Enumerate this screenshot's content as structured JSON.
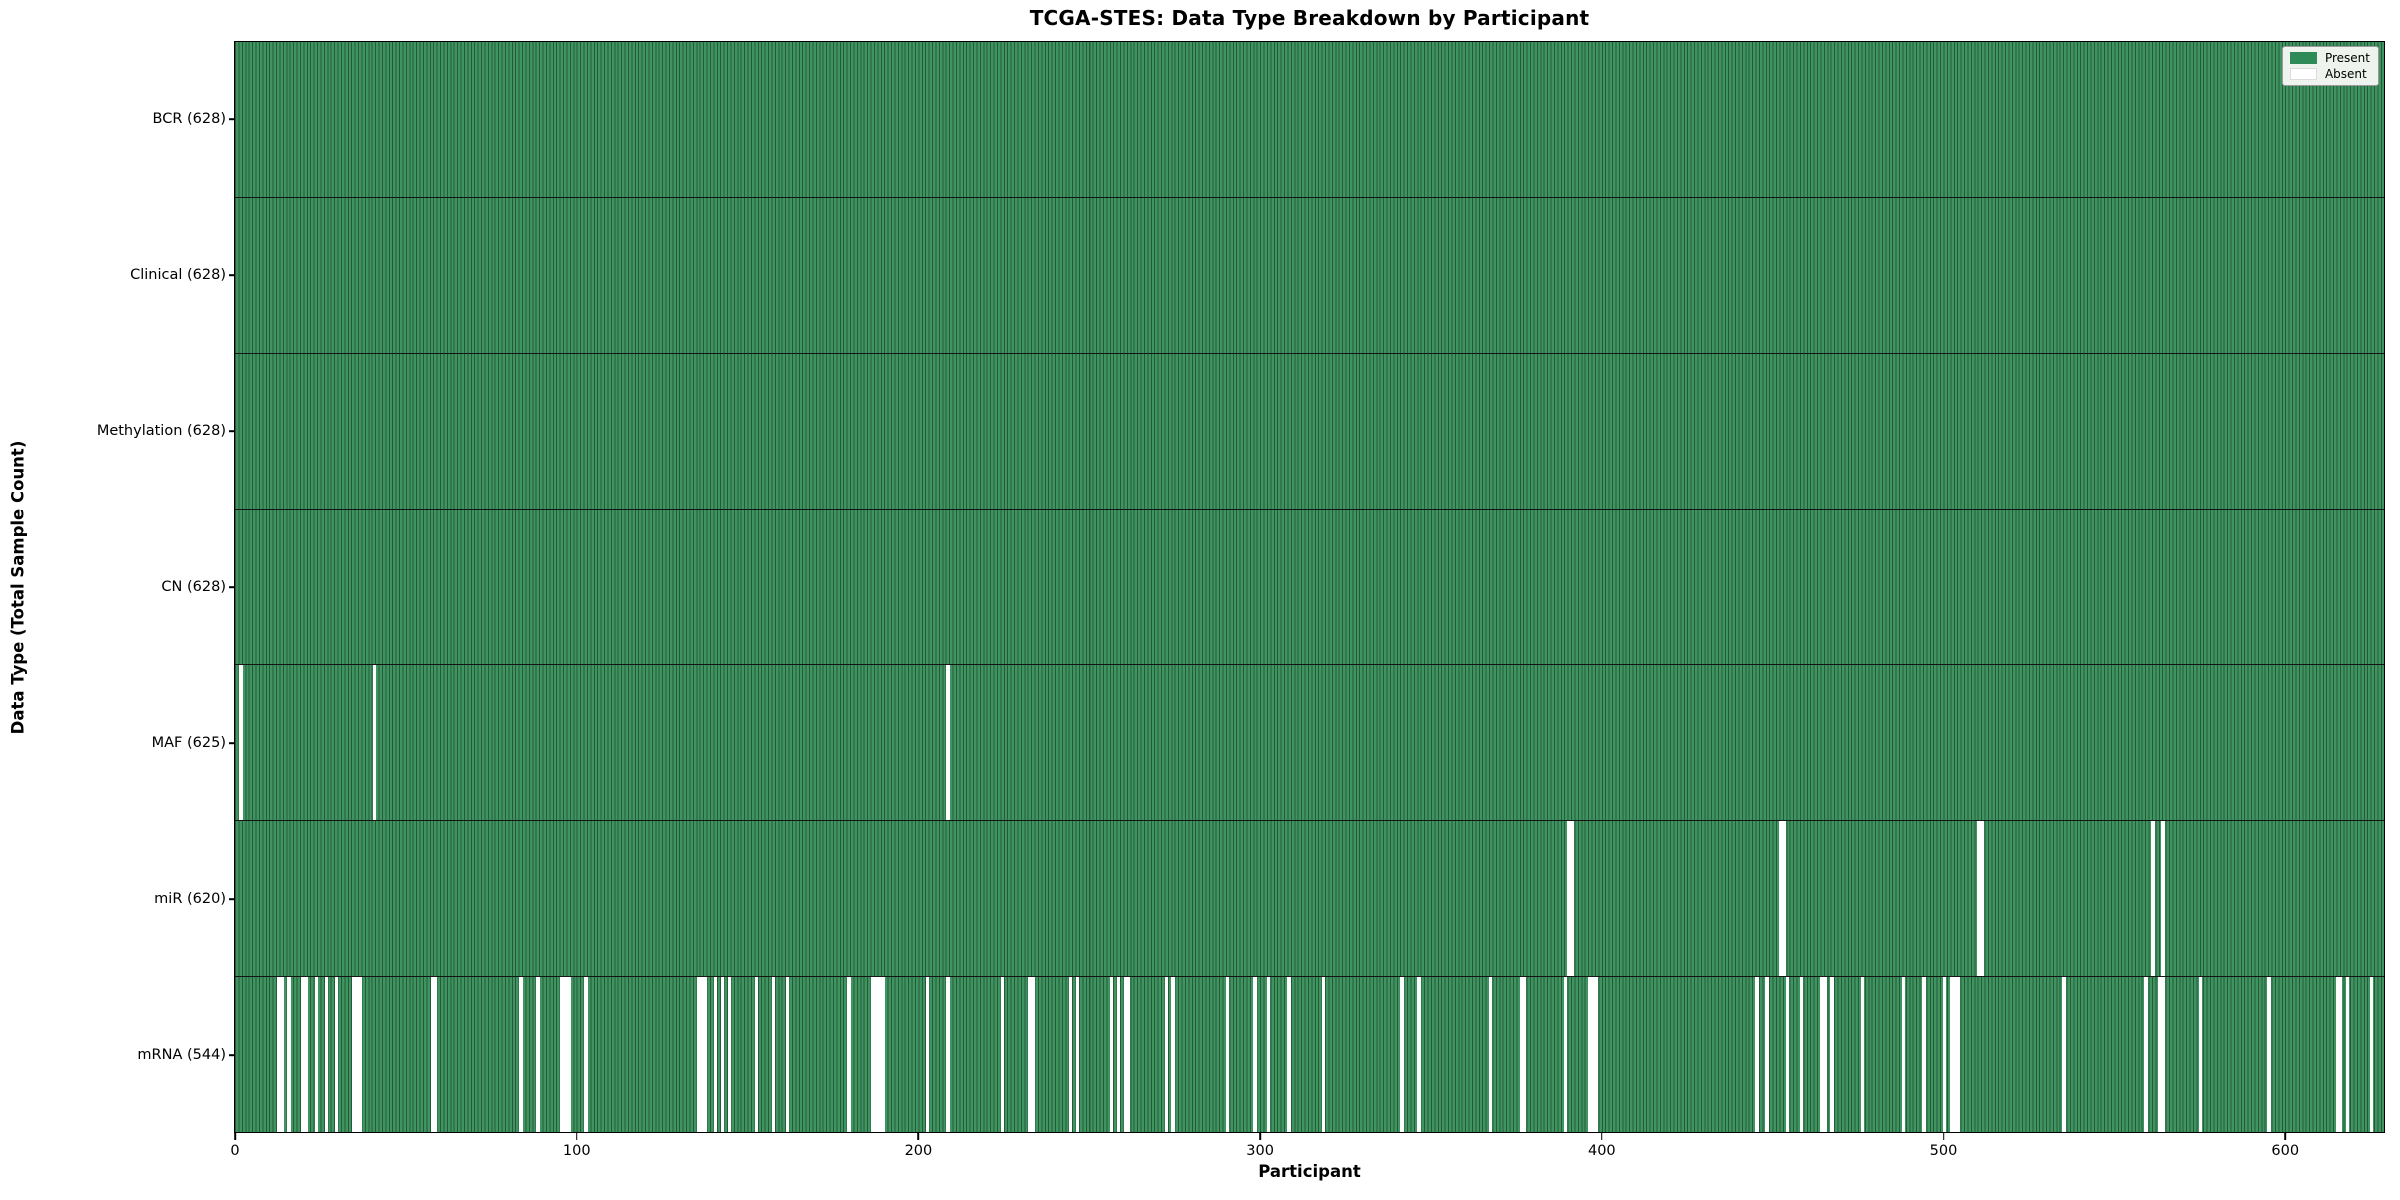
{
  "chart_data": {
    "type": "heatmap",
    "title": "TCGA-STES: Data Type Breakdown by Participant",
    "xlabel": "Participant",
    "ylabel": "Data Type (Total Sample Count)",
    "x_ticks": [
      0,
      100,
      200,
      300,
      400,
      500,
      600
    ],
    "x_min": -0.3,
    "x_max": 629.2,
    "n_participants": 628,
    "grid": false,
    "legend_position": "upper right",
    "legend": [
      {
        "label": "Present",
        "color": "#2e8b57"
      },
      {
        "label": "Absent",
        "color": "#ffffff"
      }
    ],
    "rows": [
      {
        "label": "BCR (628)",
        "name": "BCR",
        "present_count": 628,
        "absent_participants": []
      },
      {
        "label": "Clinical (628)",
        "name": "Clinical",
        "present_count": 628,
        "absent_participants": []
      },
      {
        "label": "Methylation (628)",
        "name": "Methylation",
        "present_count": 628,
        "absent_participants": []
      },
      {
        "label": "CN (628)",
        "name": "CN",
        "present_count": 628,
        "absent_participants": []
      },
      {
        "label": "MAF (625)",
        "name": "MAF",
        "present_count": 625,
        "absent_participants": [
          1,
          40,
          208
        ]
      },
      {
        "label": "miR (620)",
        "name": "miR",
        "present_count": 620,
        "absent_participants": [
          390,
          391,
          452,
          453,
          510,
          511,
          561,
          564
        ]
      },
      {
        "label": "mRNA (544)",
        "name": "mRNA",
        "present_count": 544,
        "absent_participants": [
          12,
          13,
          15,
          19,
          20,
          23,
          26,
          29,
          34,
          35,
          36,
          57,
          58,
          83,
          88,
          95,
          96,
          97,
          102,
          135,
          136,
          137,
          140,
          142,
          144,
          152,
          157,
          161,
          179,
          186,
          187,
          188,
          189,
          202,
          208,
          224,
          232,
          233,
          244,
          246,
          256,
          258,
          260,
          261,
          272,
          274,
          290,
          298,
          302,
          308,
          318,
          341,
          346,
          367,
          376,
          377,
          389,
          396,
          397,
          398,
          445,
          448,
          454,
          458,
          464,
          465,
          467,
          476,
          488,
          494,
          500,
          502,
          503,
          504,
          535,
          559,
          563,
          564,
          575,
          595,
          615,
          616,
          618,
          625
        ]
      }
    ]
  },
  "colors": {
    "present_fill": "#3e9560",
    "present_edge": "#26593a",
    "absent_fill": "#ffffff",
    "legend_bg": "#eef3ee",
    "axis": "#000000"
  }
}
